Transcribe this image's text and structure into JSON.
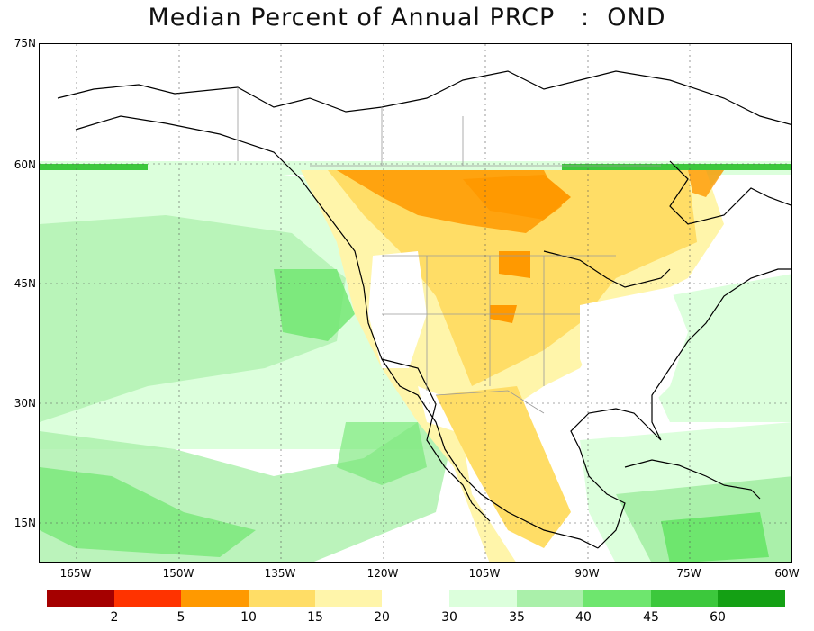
{
  "title": "Median Percent of Annual PRCP   :  OND",
  "lat_labels": [
    "75N",
    "60N",
    "45N",
    "30N",
    "15N"
  ],
  "lon_labels": [
    "165W",
    "150W",
    "135W",
    "120W",
    "105W",
    "90W",
    "75W",
    "60W"
  ],
  "color_scale": {
    "dry_colors": [
      "#a50000",
      "#ff3300",
      "#ff9900",
      "#ffdd66",
      "#fff5aa"
    ],
    "wet_colors": [
      "#dcffdc",
      "#aaf0aa",
      "#6ee66e",
      "#3cc83c",
      "#14a014"
    ],
    "labels": [
      "2",
      "5",
      "10",
      "15",
      "20",
      "30",
      "35",
      "40",
      "45",
      "60"
    ]
  }
}
